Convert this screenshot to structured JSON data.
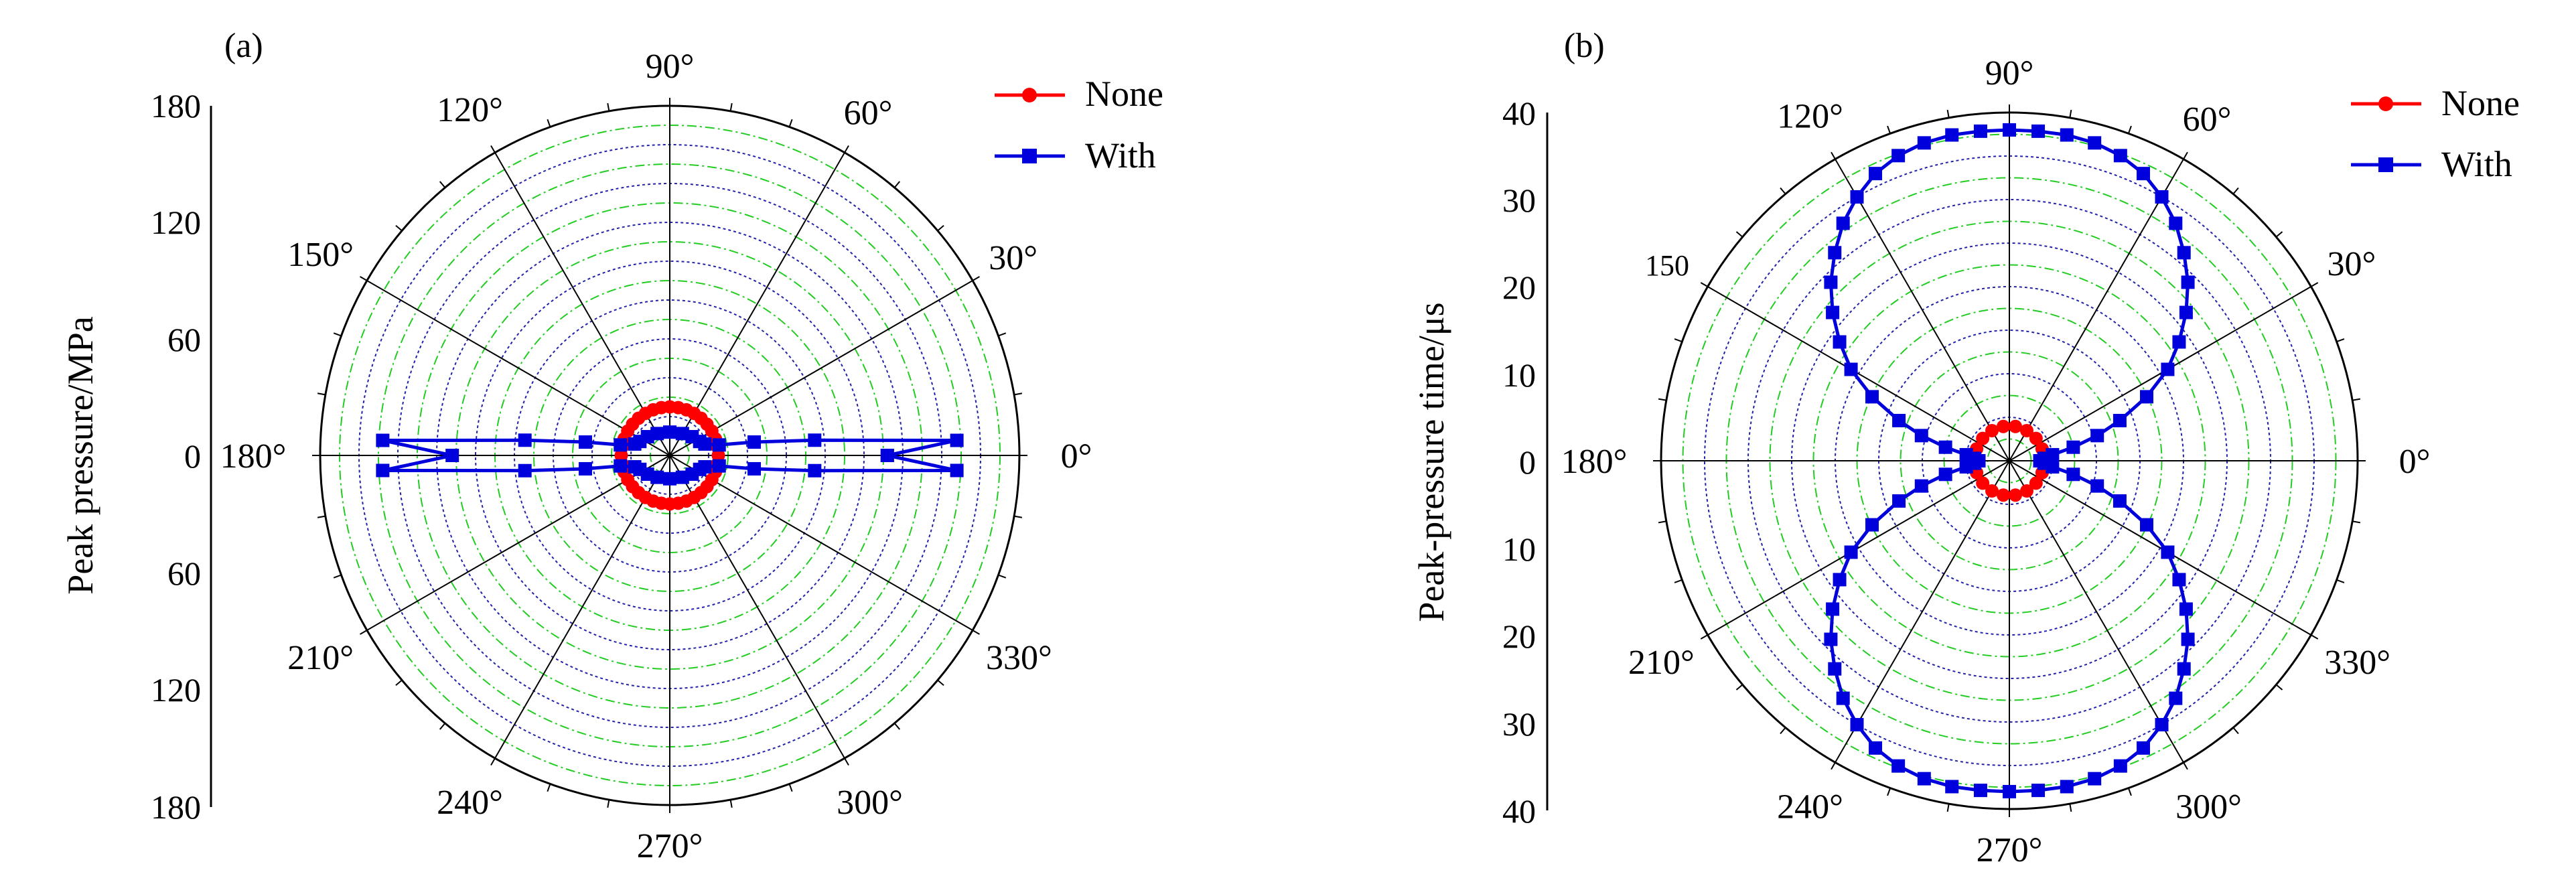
{
  "chart_data": [
    {
      "panel_label": "(a)",
      "type": "polar-line",
      "ylabel": "Peak pressure/MPa",
      "radial_axis": {
        "max": 180,
        "ticks_up": [
          "180",
          "120",
          "60",
          "0"
        ],
        "ticks_down": [
          "60",
          "120",
          "180"
        ]
      },
      "angle_labels": [
        "0°",
        "30°",
        "60°",
        "90°",
        "120°",
        "150°",
        "180°",
        "210°",
        "240°",
        "270°",
        "300°",
        "330°"
      ],
      "grid": {
        "dashed_rings": true,
        "radial_spokes_deg": 30
      },
      "legend": {
        "position": "top-right",
        "entries": [
          "None",
          "With"
        ]
      },
      "colors": {
        "none": "#ff0000",
        "with": "#0000dd",
        "grid_green": "#22cc22",
        "grid_blue": "#2222aa"
      },
      "series": [
        {
          "name": "None",
          "marker": "circle",
          "points": [
            [
              0,
              25
            ],
            [
              10,
              25
            ],
            [
              20,
              25
            ],
            [
              30,
              25
            ],
            [
              40,
              25
            ],
            [
              50,
              25
            ],
            [
              60,
              25
            ],
            [
              70,
              25
            ],
            [
              80,
              25
            ],
            [
              90,
              25
            ],
            [
              100,
              25
            ],
            [
              110,
              25
            ],
            [
              120,
              25
            ],
            [
              130,
              25
            ],
            [
              140,
              25
            ],
            [
              150,
              25
            ],
            [
              160,
              25
            ],
            [
              170,
              25
            ],
            [
              180,
              25
            ],
            [
              190,
              25
            ],
            [
              200,
              25
            ],
            [
              210,
              25
            ],
            [
              220,
              25
            ],
            [
              230,
              25
            ],
            [
              240,
              25
            ],
            [
              250,
              25
            ],
            [
              260,
              25
            ],
            [
              270,
              25
            ],
            [
              280,
              25
            ],
            [
              290,
              25
            ],
            [
              300,
              25
            ],
            [
              310,
              25
            ],
            [
              320,
              25
            ],
            [
              330,
              25
            ],
            [
              340,
              25
            ],
            [
              350,
              25
            ]
          ]
        },
        {
          "name": "With",
          "marker": "square",
          "points": [
            [
              0,
              112
            ],
            [
              3,
              148
            ],
            [
              6,
              75
            ],
            [
              9,
              44
            ],
            [
              12,
              26
            ],
            [
              18,
              19
            ],
            [
              25,
              17
            ],
            [
              40,
              15
            ],
            [
              60,
              13
            ],
            [
              90,
              12
            ],
            [
              120,
              13
            ],
            [
              140,
              15
            ],
            [
              155,
              17
            ],
            [
              162,
              19
            ],
            [
              168,
              26
            ],
            [
              171,
              44
            ],
            [
              174,
              75
            ],
            [
              177,
              148
            ],
            [
              180,
              112
            ],
            [
              183,
              148
            ],
            [
              186,
              75
            ],
            [
              189,
              44
            ],
            [
              192,
              26
            ],
            [
              198,
              19
            ],
            [
              205,
              17
            ],
            [
              220,
              15
            ],
            [
              240,
              13
            ],
            [
              270,
              12
            ],
            [
              300,
              13
            ],
            [
              320,
              15
            ],
            [
              335,
              17
            ],
            [
              342,
              19
            ],
            [
              348,
              26
            ],
            [
              351,
              44
            ],
            [
              354,
              75
            ],
            [
              357,
              148
            ],
            [
              360,
              112
            ]
          ]
        }
      ]
    },
    {
      "panel_label": "(b)",
      "type": "polar-line",
      "ylabel": "Peak-pressure time/μs",
      "radial_axis": {
        "max": 40,
        "ticks_up": [
          "40",
          "30",
          "20",
          "10",
          "0"
        ],
        "ticks_down": [
          "10",
          "20",
          "30",
          "40"
        ]
      },
      "angle_labels": [
        "0°",
        "30°",
        "60°",
        "90°",
        "120°",
        "150",
        "180°",
        "210°",
        "240°",
        "270°",
        "300°",
        "330°"
      ],
      "grid": {
        "dashed_rings": true,
        "radial_spokes_deg": 30
      },
      "legend": {
        "position": "top-right",
        "entries": [
          "None",
          "With"
        ]
      },
      "colors": {
        "none": "#ff0000",
        "with": "#0000dd",
        "grid_green": "#22cc22",
        "grid_blue": "#2222aa"
      },
      "series": [
        {
          "name": "None",
          "marker": "circle",
          "points": [
            [
              0,
              4
            ],
            [
              20,
              4
            ],
            [
              40,
              4
            ],
            [
              60,
              4
            ],
            [
              80,
              4
            ],
            [
              100,
              4
            ],
            [
              120,
              4
            ],
            [
              140,
              4
            ],
            [
              160,
              4
            ],
            [
              180,
              4
            ],
            [
              200,
              4
            ],
            [
              220,
              4
            ],
            [
              240,
              4
            ],
            [
              260,
              4
            ],
            [
              280,
              4
            ],
            [
              300,
              4
            ],
            [
              320,
              4
            ],
            [
              340,
              4
            ]
          ]
        },
        {
          "name": "With",
          "marker": "square",
          "points": [
            [
              0,
              3.5
            ],
            [
              4,
              4
            ],
            [
              8,
              5
            ],
            [
              12,
              7.5
            ],
            [
              16,
              10.5
            ],
            [
              20,
              13.5
            ],
            [
              25,
              17.4
            ],
            [
              30,
              21
            ],
            [
              35,
              23.8
            ],
            [
              40,
              26.5
            ],
            [
              45,
              29
            ],
            [
              50,
              31.2
            ],
            [
              55,
              33.3
            ],
            [
              60,
              35
            ],
            [
              65,
              36.4
            ],
            [
              70,
              37.3
            ],
            [
              75,
              37.8
            ],
            [
              80,
              38
            ],
            [
              85,
              38
            ],
            [
              90,
              38
            ],
            [
              95,
              38
            ],
            [
              100,
              38
            ],
            [
              105,
              37.8
            ],
            [
              110,
              37.3
            ],
            [
              115,
              36.4
            ],
            [
              120,
              35
            ],
            [
              125,
              33.3
            ],
            [
              130,
              31.2
            ],
            [
              135,
              29
            ],
            [
              140,
              26.5
            ],
            [
              145,
              23.8
            ],
            [
              150,
              21
            ],
            [
              155,
              17.4
            ],
            [
              160,
              13.5
            ],
            [
              164,
              10.5
            ],
            [
              168,
              7.5
            ],
            [
              172,
              5
            ],
            [
              176,
              4
            ],
            [
              180,
              3.5
            ],
            [
              184,
              4
            ],
            [
              188,
              5
            ],
            [
              192,
              7.5
            ],
            [
              196,
              10.5
            ],
            [
              200,
              13.5
            ],
            [
              205,
              17.4
            ],
            [
              210,
              21
            ],
            [
              215,
              23.8
            ],
            [
              220,
              26.5
            ],
            [
              225,
              29
            ],
            [
              230,
              31.2
            ],
            [
              235,
              33.3
            ],
            [
              240,
              35
            ],
            [
              245,
              36.4
            ],
            [
              250,
              37.3
            ],
            [
              255,
              37.8
            ],
            [
              260,
              38
            ],
            [
              265,
              38
            ],
            [
              270,
              38
            ],
            [
              275,
              38
            ],
            [
              280,
              38
            ],
            [
              285,
              37.8
            ],
            [
              290,
              37.3
            ],
            [
              295,
              36.4
            ],
            [
              300,
              35
            ],
            [
              305,
              33.3
            ],
            [
              310,
              31.2
            ],
            [
              315,
              29
            ],
            [
              320,
              26.5
            ],
            [
              325,
              23.8
            ],
            [
              330,
              21
            ],
            [
              335,
              17.4
            ],
            [
              340,
              13.5
            ],
            [
              344,
              10.5
            ],
            [
              348,
              7.5
            ],
            [
              352,
              5
            ],
            [
              356,
              4
            ],
            [
              360,
              3.5
            ]
          ]
        }
      ]
    }
  ]
}
